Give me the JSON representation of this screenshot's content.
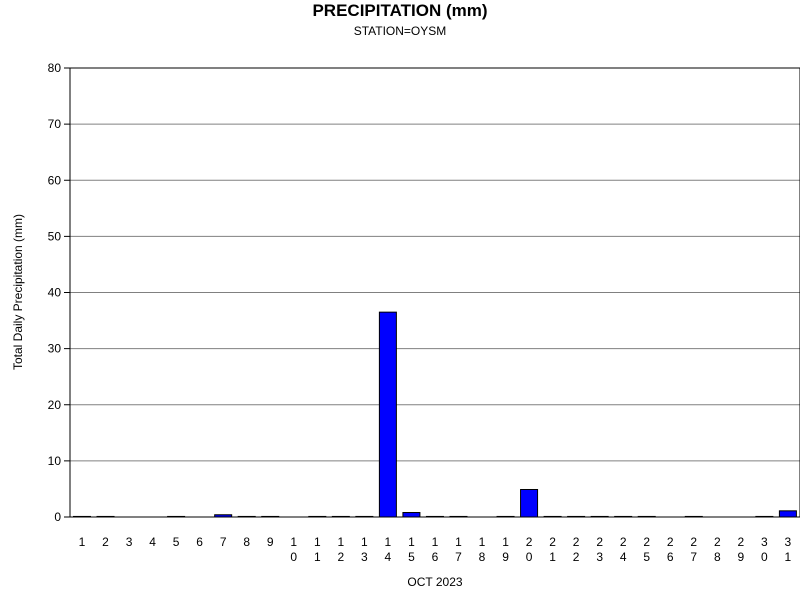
{
  "chart_data": {
    "type": "bar",
    "title": "PRECIPITATION (mm)",
    "subtitle": "STATION=OYSM",
    "xlabel": "OCT 2023",
    "ylabel": "Total Daily Precipitation (mm)",
    "ylim": [
      0,
      80
    ],
    "yticks": [
      0,
      10,
      20,
      30,
      40,
      50,
      60,
      70,
      80
    ],
    "grid": true,
    "bar_color": "#0000ff",
    "categories": [
      "1",
      "2",
      "3",
      "4",
      "5",
      "6",
      "7",
      "8",
      "9",
      "10",
      "11",
      "12",
      "13",
      "14",
      "15",
      "16",
      "17",
      "18",
      "19",
      "20",
      "21",
      "22",
      "23",
      "24",
      "25",
      "26",
      "27",
      "28",
      "29",
      "30",
      "31"
    ],
    "values": [
      0.1,
      0.1,
      0,
      0,
      0.1,
      0,
      0.4,
      0.1,
      0.1,
      0,
      0.1,
      0.1,
      0.1,
      36.5,
      0.8,
      0.1,
      0.1,
      0,
      0.1,
      4.9,
      0.1,
      0.1,
      0.1,
      0.1,
      0.1,
      0,
      0.1,
      0,
      0,
      0.1,
      1.1
    ]
  }
}
